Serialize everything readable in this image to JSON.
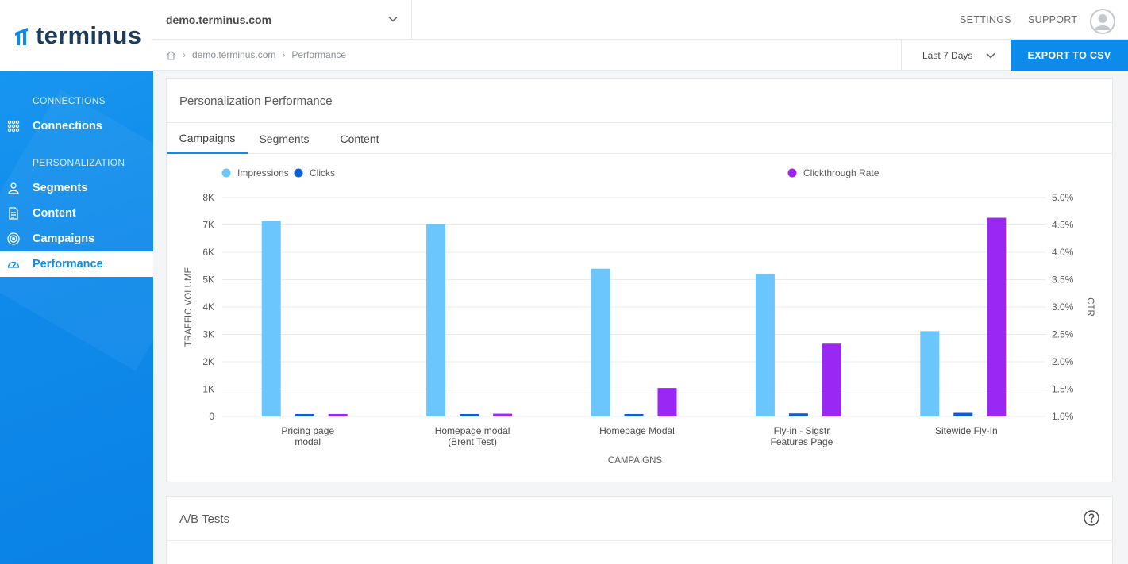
{
  "brand": {
    "name": "terminus"
  },
  "sidebar": {
    "sections": [
      {
        "label": "CONNECTIONS"
      },
      {
        "label": "PERSONALIZATION"
      }
    ],
    "items": [
      {
        "label": "Connections",
        "icon": "connections-icon"
      },
      {
        "label": "Segments",
        "icon": "user-icon"
      },
      {
        "label": "Content",
        "icon": "document-icon"
      },
      {
        "label": "Campaigns",
        "icon": "target-icon"
      },
      {
        "label": "Performance",
        "icon": "gauge-icon",
        "active": true
      }
    ]
  },
  "topbar": {
    "domain": "demo.terminus.com",
    "settings": "SETTINGS",
    "support": "SUPPORT"
  },
  "breadcrumb": {
    "items": [
      "demo.terminus.com",
      "Performance"
    ]
  },
  "date_range": {
    "selected": "Last 7 Days"
  },
  "export_label": "EXPORT TO CSV",
  "card1": {
    "title": "Personalization Performance",
    "tabs": [
      "Campaigns",
      "Segments",
      "Content"
    ]
  },
  "card2": {
    "title": "A/B Tests"
  },
  "colors": {
    "accent": "#0d8bea",
    "impressions": "#6ac6fc",
    "clicks": "#0b5fd1",
    "ctr": "#9b27f5"
  },
  "chart_data": {
    "type": "bar",
    "categories": [
      [
        "Pricing page",
        "modal"
      ],
      [
        "Homepage modal",
        "(Brent Test)"
      ],
      [
        "Homepage Modal"
      ],
      [
        "Fly-in - Sigstr",
        "Features Page"
      ],
      [
        "Sitewide Fly-In"
      ]
    ],
    "series": [
      {
        "name": "Impressions",
        "axis": "left",
        "values": [
          7150,
          7030,
          5400,
          5220,
          3120
        ]
      },
      {
        "name": "Clicks",
        "axis": "left",
        "values": [
          60,
          55,
          70,
          110,
          130
        ]
      },
      {
        "name": "Clickthrough Rate",
        "axis": "right",
        "values": [
          1.04,
          1.05,
          1.52,
          2.33,
          4.63
        ]
      }
    ],
    "left_axis": {
      "label": "TRAFFIC VOLUME",
      "min": 0,
      "max": 8000,
      "ticks": [
        "0",
        "1K",
        "2K",
        "3K",
        "4K",
        "5K",
        "6K",
        "7K",
        "8K"
      ]
    },
    "right_axis": {
      "label": "CTR",
      "min": 1.0,
      "max": 5.0,
      "ticks": [
        "1.0%",
        "1.5%",
        "2.0%",
        "2.5%",
        "3.0%",
        "3.5%",
        "4.0%",
        "4.5%",
        "5.0%"
      ]
    },
    "xlabel": "CAMPAIGNS",
    "grid": true,
    "legend": "top"
  }
}
